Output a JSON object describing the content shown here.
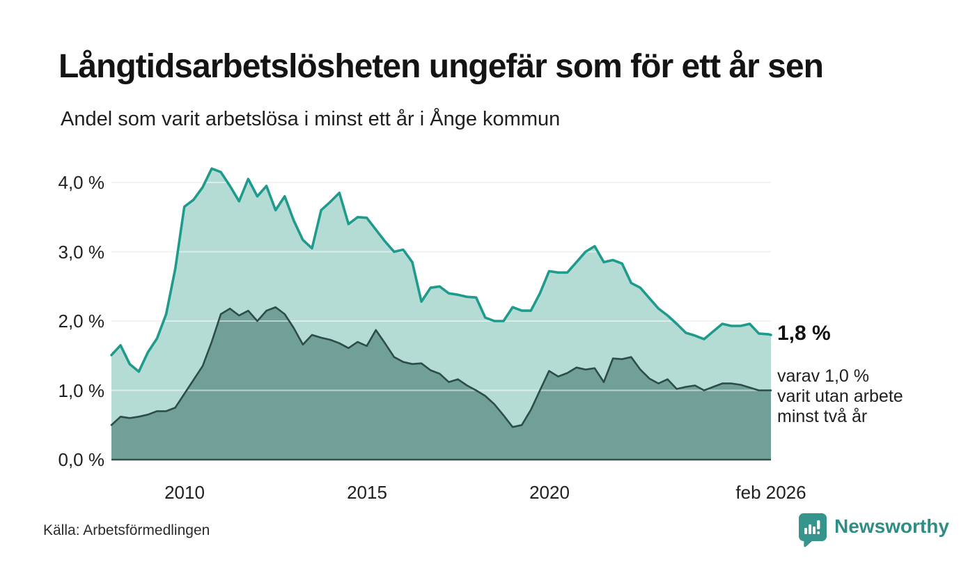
{
  "header": {
    "title": "Långtidsarbetslösheten ungefär som för ett år sen",
    "subtitle": "Andel som varit arbetslösa i minst ett år i Ånge kommun"
  },
  "chart_data": {
    "type": "area",
    "title": "Långtidsarbetslösheten ungefär som för ett år sen",
    "subtitle": "Andel som varit arbetslösa i minst ett år i Ånge kommun",
    "x_unit": "decimal_year",
    "x_range": [
      2008.0,
      2026.083
    ],
    "ylim": [
      0,
      4.42
    ],
    "grid": true,
    "colors": {
      "grid_under": "#e4e4e4",
      "grid_over": "rgba(255,255,255,0.5)",
      "baseline": "#3a4f4a"
    },
    "y_ticks": [
      {
        "value": 4,
        "label": "4,0 %"
      },
      {
        "value": 3,
        "label": "3,0 %"
      },
      {
        "value": 2,
        "label": "2,0 %"
      },
      {
        "value": 1,
        "label": "1,0 %"
      },
      {
        "value": 0,
        "label": "0,0 %"
      }
    ],
    "x_ticks": [
      {
        "value": 2010,
        "label": "2010"
      },
      {
        "value": 2015,
        "label": "2015"
      },
      {
        "value": 2020,
        "label": "2020"
      },
      {
        "value": 2026.083,
        "label": "feb 2026"
      }
    ],
    "x": [
      2008.0,
      2008.25,
      2008.5,
      2008.75,
      2009.0,
      2009.25,
      2009.5,
      2009.75,
      2010.0,
      2010.25,
      2010.5,
      2010.75,
      2011.0,
      2011.25,
      2011.5,
      2011.75,
      2012.0,
      2012.25,
      2012.5,
      2012.75,
      2013.0,
      2013.25,
      2013.5,
      2013.75,
      2014.0,
      2014.25,
      2014.5,
      2014.75,
      2015.0,
      2015.25,
      2015.5,
      2015.75,
      2016.0,
      2016.25,
      2016.5,
      2016.75,
      2017.0,
      2017.25,
      2017.5,
      2017.75,
      2018.0,
      2018.25,
      2018.5,
      2018.75,
      2019.0,
      2019.25,
      2019.5,
      2019.75,
      2020.0,
      2020.25,
      2020.5,
      2020.75,
      2021.0,
      2021.25,
      2021.5,
      2021.75,
      2022.0,
      2022.25,
      2022.5,
      2022.75,
      2023.0,
      2023.25,
      2023.5,
      2023.75,
      2024.0,
      2024.25,
      2024.5,
      2024.75,
      2025.0,
      2025.25,
      2025.5,
      2025.75,
      2026.0,
      2026.083
    ],
    "series": [
      {
        "name": "Arbetslösa minst ett år",
        "line_color": "#1e9b8c",
        "fill_color": "#b4dbd4",
        "line_width": 3.6,
        "values": [
          1.51,
          1.65,
          1.38,
          1.27,
          1.55,
          1.75,
          2.1,
          2.75,
          3.65,
          3.75,
          3.93,
          4.2,
          4.15,
          3.95,
          3.73,
          4.05,
          3.8,
          3.95,
          3.6,
          3.8,
          3.45,
          3.17,
          3.05,
          3.6,
          3.72,
          3.85,
          3.4,
          3.5,
          3.49,
          3.32,
          3.15,
          3.0,
          3.03,
          2.85,
          2.28,
          2.48,
          2.5,
          2.4,
          2.38,
          2.35,
          2.34,
          2.05,
          2.0,
          2.0,
          2.2,
          2.15,
          2.15,
          2.4,
          2.72,
          2.7,
          2.7,
          2.85,
          3.0,
          3.08,
          2.85,
          2.88,
          2.83,
          2.55,
          2.48,
          2.33,
          2.18,
          2.08,
          1.96,
          1.83,
          1.79,
          1.74,
          1.85,
          1.96,
          1.93,
          1.93,
          1.96,
          1.82,
          1.81,
          1.8
        ]
      },
      {
        "name": "Arbetslösa minst två år",
        "line_color": "#2d4d47",
        "fill_color": "#70a098",
        "line_width": 2.6,
        "values": [
          0.5,
          0.62,
          0.6,
          0.62,
          0.65,
          0.7,
          0.7,
          0.75,
          0.95,
          1.15,
          1.35,
          1.7,
          2.1,
          2.18,
          2.08,
          2.15,
          2.0,
          2.15,
          2.2,
          2.1,
          1.9,
          1.66,
          1.8,
          1.76,
          1.73,
          1.68,
          1.61,
          1.7,
          1.64,
          1.87,
          1.68,
          1.48,
          1.41,
          1.38,
          1.39,
          1.29,
          1.24,
          1.12,
          1.16,
          1.07,
          1.0,
          0.92,
          0.8,
          0.64,
          0.47,
          0.5,
          0.72,
          1.0,
          1.28,
          1.2,
          1.25,
          1.33,
          1.3,
          1.32,
          1.12,
          1.46,
          1.45,
          1.48,
          1.3,
          1.17,
          1.1,
          1.16,
          1.02,
          1.05,
          1.07,
          1.0,
          1.05,
          1.1,
          1.1,
          1.08,
          1.04,
          1.0,
          1.0,
          1.0
        ]
      }
    ],
    "annotations": {
      "latest_value_label": "1,8 %",
      "sub_label_lines": [
        "varav 1,0 %",
        "varit utan arbete",
        "minst två år"
      ]
    }
  },
  "footer": {
    "source": "Källa: Arbetsförmedlingen",
    "brand": "Newsworthy"
  }
}
